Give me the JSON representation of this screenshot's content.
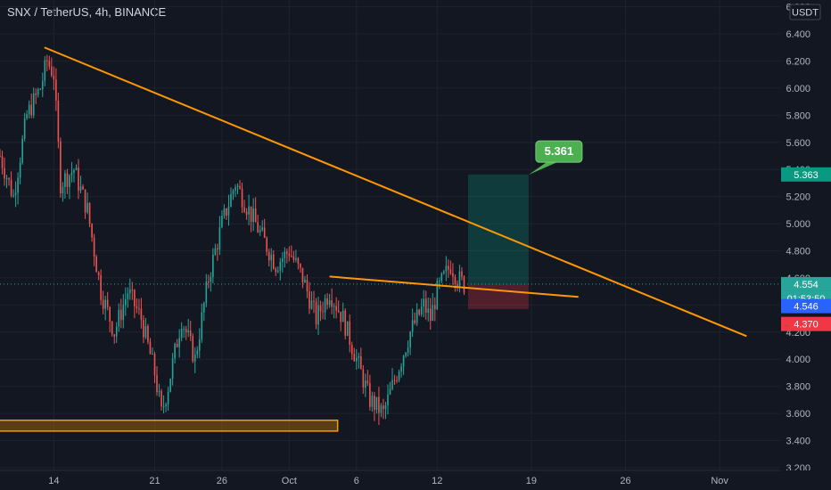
{
  "header": {
    "title": "SNX / TetherUS, 4h, BINANCE"
  },
  "axis": {
    "currency": "USDT"
  },
  "chart_data": {
    "type": "candlestick",
    "symbol": "SNX / TetherUS",
    "interval": "4h",
    "exchange": "BINANCE",
    "y_ticks": [
      "6.600",
      "6.400",
      "6.200",
      "6.000",
      "5.800",
      "5.600",
      "5.400",
      "5.200",
      "5.000",
      "4.800",
      "4.600",
      "4.400",
      "4.200",
      "4.000",
      "3.800",
      "3.600",
      "3.400",
      "3.200"
    ],
    "y_tick_values": [
      6.6,
      6.4,
      6.2,
      6.0,
      5.8,
      5.6,
      5.4,
      5.2,
      5.0,
      4.8,
      4.6,
      4.4,
      4.2,
      4.0,
      3.8,
      3.6,
      3.4,
      3.2
    ],
    "ylim": [
      3.18,
      6.65
    ],
    "x_ticks": [
      "14",
      "21",
      "26",
      "Oct",
      "6",
      "12",
      "19",
      "26",
      "Nov"
    ],
    "x_tick_days": [
      13.5,
      21,
      26,
      31,
      36,
      42,
      49,
      56,
      63
    ],
    "xlim": [
      9.5,
      67.5
    ],
    "price_path": [
      [
        9.5,
        5.5
      ],
      [
        10.5,
        5.2
      ],
      [
        11.5,
        5.8
      ],
      [
        12.5,
        6.0
      ],
      [
        13,
        6.2
      ],
      [
        13.5,
        6.1
      ],
      [
        14,
        5.3
      ],
      [
        15,
        5.4
      ],
      [
        16,
        5.1
      ],
      [
        17,
        4.5
      ],
      [
        18,
        4.2
      ],
      [
        19,
        4.5
      ],
      [
        20,
        4.3
      ],
      [
        21,
        3.9
      ],
      [
        21.5,
        3.6
      ],
      [
        22,
        3.8
      ],
      [
        23,
        4.3
      ],
      [
        24,
        4.0
      ],
      [
        25,
        4.6
      ],
      [
        26,
        5.0
      ],
      [
        27,
        5.3
      ],
      [
        28,
        5.1
      ],
      [
        29,
        4.9
      ],
      [
        30,
        4.7
      ],
      [
        31,
        4.8
      ],
      [
        32,
        4.6
      ],
      [
        33,
        4.3
      ],
      [
        34,
        4.5
      ],
      [
        35,
        4.3
      ],
      [
        36,
        4.0
      ],
      [
        37,
        3.7
      ],
      [
        38,
        3.6
      ],
      [
        39,
        3.9
      ],
      [
        40,
        4.2
      ],
      [
        41,
        4.4
      ],
      [
        41.5,
        4.3
      ],
      [
        42,
        4.5
      ],
      [
        43,
        4.7
      ],
      [
        43.5,
        4.6
      ],
      [
        44,
        4.55
      ]
    ],
    "trendlines": [
      {
        "name": "descending-resistance",
        "x1": 12.8,
        "y1": 6.3,
        "x2": 65,
        "y2": 4.17
      },
      {
        "name": "inner-resistance",
        "x1": 34,
        "y1": 4.61,
        "x2": 52.5,
        "y2": 4.46
      }
    ],
    "support_zone": {
      "x1": -100,
      "x2": 34.6,
      "y_low": 3.47,
      "y_high": 3.55
    },
    "position": {
      "x1": 44.3,
      "x2": 48.8,
      "entry": 4.554,
      "target": 5.363,
      "stop": 4.37
    },
    "callout": {
      "label": "5.361",
      "price": 5.361
    },
    "price_labels": [
      {
        "label": "5.363",
        "price": 5.363,
        "color": "#089981"
      },
      {
        "label": "4.554",
        "price": 4.554,
        "color": "#26a69a"
      },
      {
        "label": "01:53:50",
        "price": 4.45,
        "color": "#26a69a"
      },
      {
        "label": "4.546",
        "price": 4.392,
        "color": "#2962ff"
      },
      {
        "label": "4.370",
        "price": 4.26,
        "color": "#f23645"
      }
    ]
  }
}
